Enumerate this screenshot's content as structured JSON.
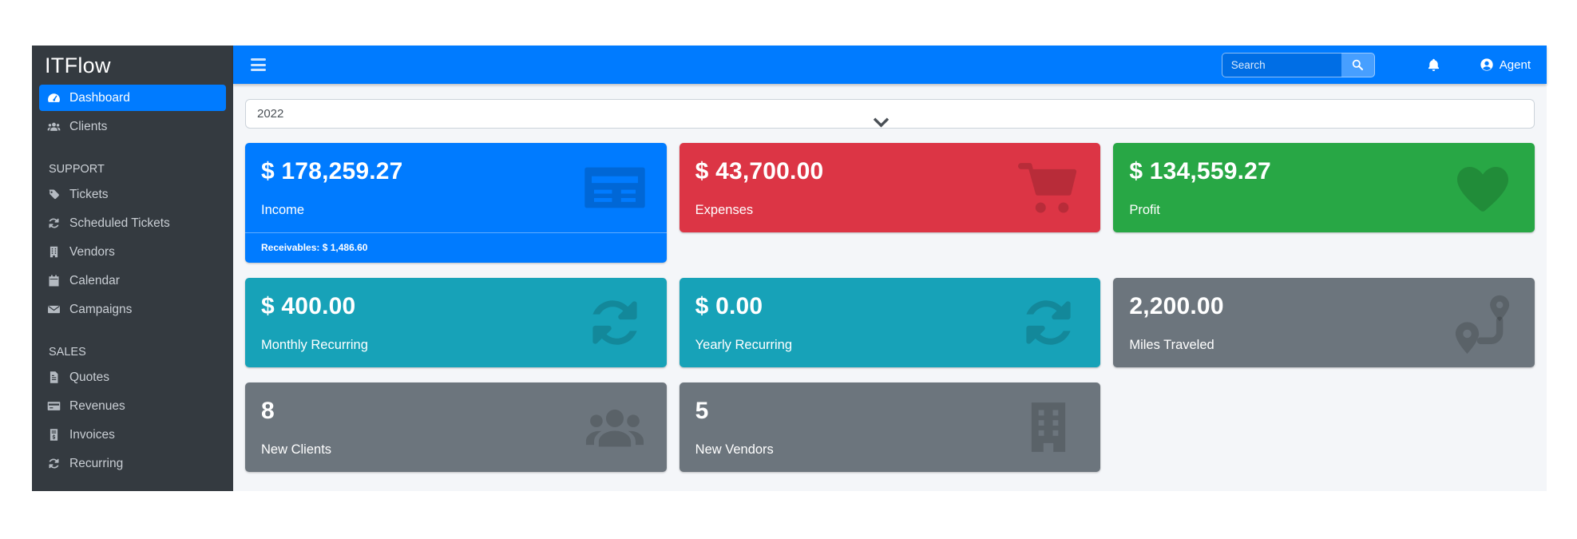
{
  "app": {
    "brand": "ITFlow"
  },
  "navbar": {
    "search": {
      "placeholder": "Search"
    },
    "user": {
      "label": "Agent"
    }
  },
  "filters": {
    "year": {
      "value": "2022",
      "options": [
        "2022"
      ]
    }
  },
  "sidebar": {
    "sections": [
      {
        "header": "",
        "items": [
          {
            "label": "Dashboard",
            "icon": "tachometer-icon",
            "active": true
          },
          {
            "label": "Clients",
            "icon": "users-icon",
            "active": false
          }
        ]
      },
      {
        "header": "SUPPORT",
        "items": [
          {
            "label": "Tickets",
            "icon": "tag-icon",
            "active": false
          },
          {
            "label": "Scheduled Tickets",
            "icon": "sync-icon",
            "active": false
          },
          {
            "label": "Vendors",
            "icon": "building-icon",
            "active": false
          },
          {
            "label": "Calendar",
            "icon": "calendar-icon",
            "active": false
          },
          {
            "label": "Campaigns",
            "icon": "envelope-icon",
            "active": false
          }
        ]
      },
      {
        "header": "SALES",
        "items": [
          {
            "label": "Quotes",
            "icon": "file-icon",
            "active": false
          },
          {
            "label": "Revenues",
            "icon": "credit-card-icon",
            "active": false
          },
          {
            "label": "Invoices",
            "icon": "invoice-dollar-icon",
            "active": false
          },
          {
            "label": "Recurring",
            "icon": "sync-icon",
            "active": false
          }
        ]
      }
    ]
  },
  "colors": {
    "primary": "#007bff",
    "danger": "#dc3545",
    "success": "#28a745",
    "info": "#17a2b8",
    "secondary": "#6c757d",
    "sidebar_bg": "#343a40",
    "content_bg": "#f4f6f9"
  },
  "stats": {
    "rows": [
      [
        {
          "value": "$ 178,259.27",
          "label": "Income",
          "color": "#007bff",
          "icon": "money-check-icon",
          "footer": "Receivables: $ 1,486.60"
        },
        {
          "value": "$ 43,700.00",
          "label": "Expenses",
          "color": "#dc3545",
          "icon": "shopping-cart-icon"
        },
        {
          "value": "$ 134,559.27",
          "label": "Profit",
          "color": "#28a745",
          "icon": "heart-icon"
        }
      ],
      [
        {
          "value": "$ 400.00",
          "label": "Monthly Recurring",
          "color": "#17a2b8",
          "icon": "sync-icon"
        },
        {
          "value": "$ 0.00",
          "label": "Yearly Recurring",
          "color": "#17a2b8",
          "icon": "sync-icon"
        },
        {
          "value": "2,200.00",
          "label": "Miles Traveled",
          "color": "#6c757d",
          "icon": "route-icon"
        }
      ],
      [
        {
          "value": "8",
          "label": "New Clients",
          "color": "#6c757d",
          "icon": "users-icon"
        },
        {
          "value": "5",
          "label": "New Vendors",
          "color": "#6c757d",
          "icon": "building-icon"
        }
      ]
    ]
  }
}
